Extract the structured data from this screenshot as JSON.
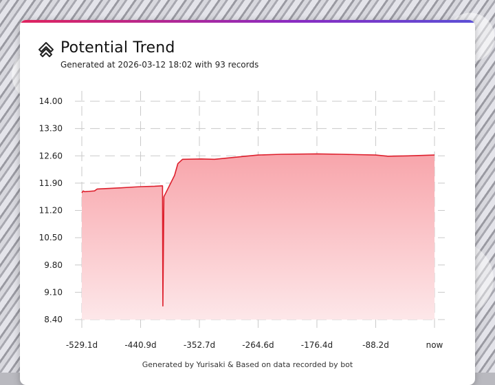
{
  "header": {
    "title": "Potential Trend",
    "subtitle": "Generated at 2026-03-12 18:02 with 93 records",
    "logo_icon": "layered-chevron-up-icon"
  },
  "footer": {
    "text": "Generated by Yurisaki & Based on data recorded by bot"
  },
  "colors": {
    "line": "#dd1f2c",
    "fill_top": "#f8a5ab",
    "fill_bottom": "#fde7e9",
    "accent": "#8a2bc2"
  },
  "chart_data": {
    "type": "area",
    "title": "",
    "xlabel": "",
    "ylabel": "",
    "grid": true,
    "xlim": [
      -529.1,
      0
    ],
    "ylim": [
      8.4,
      14.0
    ],
    "x_ticks": [
      -529.1,
      -440.9,
      -352.7,
      -264.6,
      -176.4,
      -88.2,
      0
    ],
    "x_tick_labels": [
      "-529.1d",
      "-440.9d",
      "-352.7d",
      "-264.6d",
      "-176.4d",
      "-88.2d",
      "now"
    ],
    "y_ticks": [
      14.0,
      13.3,
      12.6,
      11.9,
      11.2,
      10.5,
      9.8,
      9.1,
      8.4
    ],
    "y_tick_labels": [
      "14.00",
      "13.30",
      "12.60",
      "11.90",
      "11.20",
      "10.50",
      "9.80",
      "9.10",
      "8.40"
    ],
    "series": [
      {
        "points": [
          [
            -529.1,
            11.65
          ],
          [
            -527.0,
            11.7
          ],
          [
            -525.0,
            11.68
          ],
          [
            -510.0,
            11.7
          ],
          [
            -506.0,
            11.75
          ],
          [
            -470.0,
            11.78
          ],
          [
            -450.0,
            11.8
          ],
          [
            -440.0,
            11.81
          ],
          [
            -420.0,
            11.82
          ],
          [
            -409.0,
            11.83
          ],
          [
            -408.0,
            11.83
          ],
          [
            -407.5,
            8.75
          ],
          [
            -406.0,
            11.55
          ],
          [
            -390.0,
            12.1
          ],
          [
            -385.0,
            12.4
          ],
          [
            -378.0,
            12.51
          ],
          [
            -350.0,
            12.52
          ],
          [
            -330.0,
            12.51
          ],
          [
            -290.0,
            12.58
          ],
          [
            -264.6,
            12.62
          ],
          [
            -230.0,
            12.64
          ],
          [
            -176.4,
            12.65
          ],
          [
            -140.0,
            12.64
          ],
          [
            -88.2,
            12.62
          ],
          [
            -70.0,
            12.59
          ],
          [
            -40.0,
            12.6
          ],
          [
            0,
            12.62
          ]
        ]
      }
    ]
  }
}
